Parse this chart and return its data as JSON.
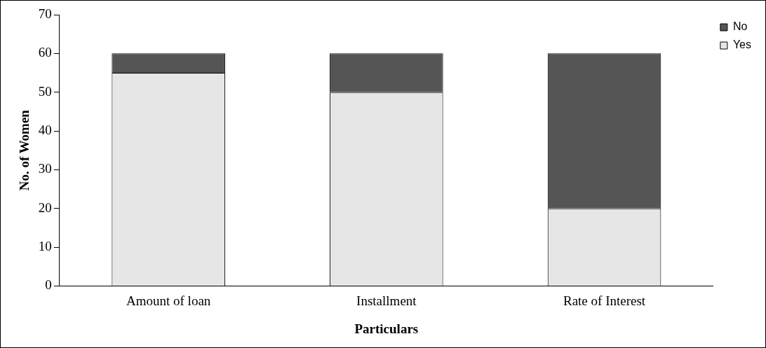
{
  "chart_data": {
    "type": "bar",
    "stacked": true,
    "xlabel": "Particulars",
    "ylabel": "No. of Women",
    "categories": [
      "Amount of loan",
      "Installment",
      "Rate of Interest"
    ],
    "series": [
      {
        "name": "Yes",
        "color": "#e6e6e6",
        "values": [
          55,
          50,
          20
        ]
      },
      {
        "name": "No",
        "color": "#555555",
        "values": [
          5,
          10,
          40
        ]
      }
    ],
    "ylim": [
      0,
      70
    ],
    "yticks": [
      0,
      10,
      20,
      30,
      40,
      50,
      60,
      70
    ],
    "grid": false,
    "legend": "top right"
  }
}
